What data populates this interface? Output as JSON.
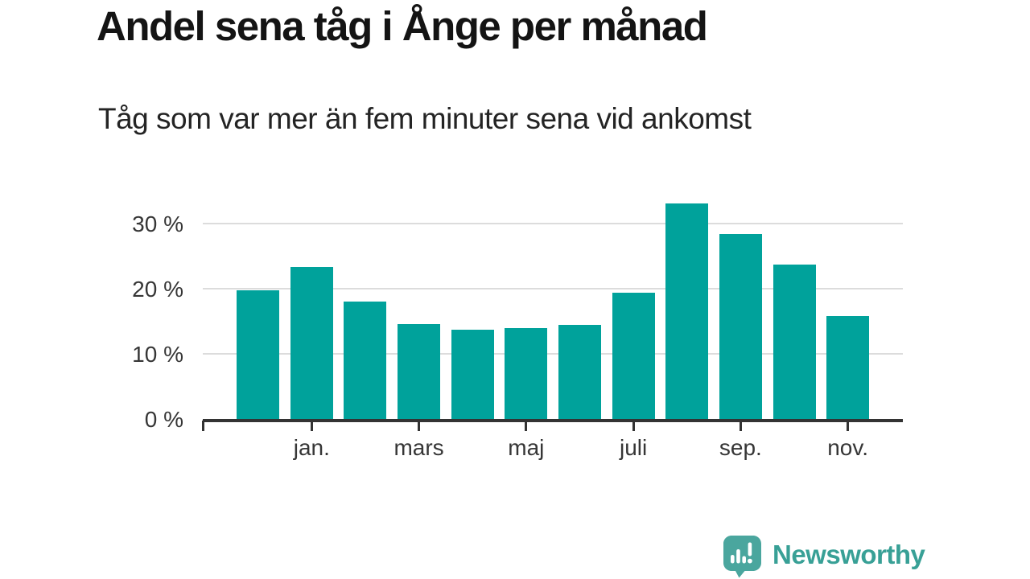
{
  "header": {
    "title": "Andel sena tåg i Ånge per månad",
    "subtitle": "Tåg som var mer än fem minuter sena vid ankomst"
  },
  "chart_data": {
    "type": "bar",
    "title": "Andel sena tåg i Ånge per månad",
    "subtitle": "Tåg som var mer än fem minuter sena vid ankomst",
    "categories": [
      "",
      "jan.",
      "",
      "mars",
      "",
      "maj",
      "",
      "juli",
      "",
      "sep.",
      "",
      "nov."
    ],
    "values": [
      19.8,
      23.4,
      18.1,
      14.6,
      13.7,
      14.0,
      14.5,
      19.4,
      33.2,
      28.5,
      23.8,
      15.8
    ],
    "unit": "%",
    "x_tick_labels": [
      "jan.",
      "mars",
      "maj",
      "juli",
      "sep.",
      "nov."
    ],
    "y_tick_values": [
      0,
      10,
      20,
      30
    ],
    "y_tick_labels": [
      "0 %",
      "10 %",
      "20 %",
      "30 %"
    ],
    "ylim": [
      0,
      35
    ],
    "grid": "horizontal-only",
    "legend": "none",
    "bar_color": "#00a29b"
  },
  "branding": {
    "logo_text": "Newsworthy",
    "logo_text_color": "#38a096",
    "logo_icon": "speech-bubble-bar-chart-exclamation",
    "logo_icon_color": "#4aa69e"
  },
  "colors": {
    "background": "#ffffff",
    "title_text": "#141414",
    "subtitle_text": "#242424",
    "axis_label_text": "#363636",
    "gridline": "#dcdcdc",
    "axis_line": "#333333"
  }
}
